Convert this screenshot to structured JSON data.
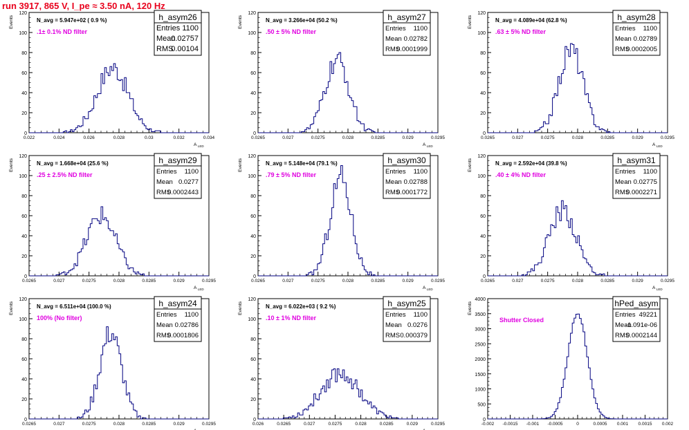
{
  "title": "run 3917,   865 V, I_pe ≈ 3.50 nA, 120 Hz",
  "chart_data": [
    {
      "type": "histogram",
      "name": "h_asym26",
      "navg": "N_avg = 5.947e+02 ( 0.9 %)",
      "filter": ".1± 0.1% ND filter",
      "stats": [
        [
          "Entries",
          "1100"
        ],
        [
          "Mean",
          "0.02757"
        ],
        [
          "RMS",
          "0.00104"
        ]
      ],
      "xmin": 0.022,
      "xmax": 0.034,
      "xticks": [
        "0.022",
        "0.024",
        "0.026",
        "0.028",
        "0.03",
        "0.032",
        "0.034"
      ],
      "ymax": 120,
      "yticks": [
        "0",
        "20",
        "40",
        "60",
        "80",
        "100",
        "120"
      ],
      "ylabel": "Events",
      "xlabel": "A_LED",
      "mean": 0.02757,
      "rms": 0.00104,
      "peak": 65
    },
    {
      "type": "histogram",
      "name": "h_asym27",
      "navg": "N_avg = 3.266e+04 (50.2 %)",
      "filter": ".50 ± 5% ND filter",
      "stats": [
        [
          "Entries",
          "1100"
        ],
        [
          "Mean",
          "0.02782"
        ],
        [
          "RMS",
          "0.0001999"
        ]
      ],
      "xmin": 0.0265,
      "xmax": 0.0295,
      "xticks": [
        "0.0265",
        "0.027",
        "0.0275",
        "0.028",
        "0.0285",
        "0.029",
        "0.0295"
      ],
      "ymax": 120,
      "yticks": [
        "0",
        "20",
        "40",
        "60",
        "80",
        "100",
        "120"
      ],
      "ylabel": "Events",
      "xlabel": "A_LED",
      "mean": 0.02782,
      "rms": 0.0001999,
      "peak": 72
    },
    {
      "type": "histogram",
      "name": "h_asym28",
      "navg": "N_avg = 4.089e+04 (62.8 %)",
      "filter": ".63 ± 5% ND filter",
      "stats": [
        [
          "Entries",
          "1100"
        ],
        [
          "Mean",
          "0.02789"
        ],
        [
          "RMS",
          "0.0002005"
        ]
      ],
      "xmin": 0.0265,
      "xmax": 0.0295,
      "xticks": [
        "0.0265",
        "0.027",
        "0.0275",
        "0.028",
        "0.0285",
        "0.029",
        "0.0295"
      ],
      "ymax": 120,
      "yticks": [
        "0",
        "20",
        "40",
        "60",
        "80",
        "100",
        "120"
      ],
      "ylabel": "Events",
      "xlabel": "A_LED",
      "mean": 0.02789,
      "rms": 0.0002005,
      "peak": 84
    },
    {
      "type": "histogram",
      "name": "h_asym29",
      "navg": "N_avg = 1.668e+04 (25.6 %)",
      "filter": ".25 ± 2.5% ND filter",
      "stats": [
        [
          "Entries",
          "1100"
        ],
        [
          "Mean",
          "0.0277"
        ],
        [
          "RMS",
          "0.0002443"
        ]
      ],
      "xmin": 0.0265,
      "xmax": 0.0295,
      "xticks": [
        "0.0265",
        "0.027",
        "0.0275",
        "0.028",
        "0.0285",
        "0.029",
        "0.0295"
      ],
      "ymax": 120,
      "yticks": [
        "0",
        "20",
        "40",
        "60",
        "80",
        "100",
        "120"
      ],
      "ylabel": "Events",
      "xlabel": "A_LED",
      "mean": 0.0277,
      "rms": 0.0002443,
      "peak": 60
    },
    {
      "type": "histogram",
      "name": "h_asym30",
      "navg": "N_avg = 5.148e+04 (79.1 %)",
      "filter": ".79 ± 5% ND filter",
      "stats": [
        [
          "Entries",
          "1100"
        ],
        [
          "Mean",
          "0.02788"
        ],
        [
          "RMS",
          "0.0001772"
        ]
      ],
      "xmin": 0.0265,
      "xmax": 0.0295,
      "xticks": [
        "0.0265",
        "0.027",
        "0.0275",
        "0.028",
        "0.0285",
        "0.029",
        "0.0295"
      ],
      "ymax": 120,
      "yticks": [
        "0",
        "20",
        "40",
        "60",
        "80",
        "100",
        "120"
      ],
      "ylabel": "Events",
      "xlabel": "A_LED",
      "mean": 0.02788,
      "rms": 0.0001772,
      "peak": 100
    },
    {
      "type": "histogram",
      "name": "h_asym31",
      "navg": "N_avg = 2.592e+04 (39.8 %)",
      "filter": ".40 ± 4% ND filter",
      "stats": [
        [
          "Entries",
          "1100"
        ],
        [
          "Mean",
          "0.02775"
        ],
        [
          "RMS",
          "0.0002271"
        ]
      ],
      "xmin": 0.0265,
      "xmax": 0.0295,
      "xticks": [
        "0.0265",
        "0.027",
        "0.0275",
        "0.028",
        "0.0285",
        "0.029",
        "0.0295"
      ],
      "ymax": 120,
      "yticks": [
        "0",
        "20",
        "40",
        "60",
        "80",
        "100",
        "120"
      ],
      "ylabel": "Events",
      "xlabel": "A_LED",
      "mean": 0.02775,
      "rms": 0.0002271,
      "peak": 66
    },
    {
      "type": "histogram",
      "name": "h_asym24",
      "navg": "N_avg = 6.511e+04 (100.0 %)",
      "filter": "100% (No filter)",
      "stats": [
        [
          "Entries",
          "1100"
        ],
        [
          "Mean",
          "0.02786"
        ],
        [
          "RMS",
          "0.0001806"
        ]
      ],
      "xmin": 0.0265,
      "xmax": 0.0295,
      "xticks": [
        "0.0265",
        "0.027",
        "0.0275",
        "0.028",
        "0.0285",
        "0.029",
        "0.0295"
      ],
      "ymax": 120,
      "yticks": [
        "0",
        "20",
        "40",
        "60",
        "80",
        "100",
        "120"
      ],
      "ylabel": "Events",
      "xlabel": "A_LED",
      "mean": 0.02786,
      "rms": 0.0001806,
      "peak": 86
    },
    {
      "type": "histogram",
      "name": "h_asym25",
      "navg": "N_avg = 6.022e+03 ( 9.2 %)",
      "filter": ".10 ± 1% ND filter",
      "stats": [
        [
          "Entries",
          "1100"
        ],
        [
          "Mean",
          "0.0276"
        ],
        [
          "RMS",
          "0.000379"
        ]
      ],
      "xmin": 0.026,
      "xmax": 0.0295,
      "xticks": [
        "0.026",
        "0.0265",
        "0.027",
        "0.0275",
        "0.028",
        "0.0285",
        "0.029",
        "0.0295"
      ],
      "ymax": 120,
      "yticks": [
        "0",
        "20",
        "40",
        "60",
        "80",
        "100",
        "120"
      ],
      "ylabel": "Events",
      "xlabel": "A_LED",
      "mean": 0.0276,
      "rms": 0.000379,
      "peak": 46
    },
    {
      "type": "histogram",
      "name": "hPed_asym",
      "navg": "",
      "filter": "Shutter Closed",
      "stats": [
        [
          "Entries",
          "49221"
        ],
        [
          "Mean",
          "-1.091e-06"
        ],
        [
          "RMS",
          "0.0002144"
        ]
      ],
      "xmin": -0.002,
      "xmax": 0.002,
      "xticks": [
        "-0.002",
        "-0.0015",
        "-0.001",
        "-0.0005",
        "0",
        "0.0005",
        "0.001",
        "0.0015",
        "0.002"
      ],
      "ymax": 4000,
      "yticks": [
        "0",
        "500",
        "1000",
        "1500",
        "2000",
        "2500",
        "3000",
        "3500",
        "4000"
      ],
      "ylabel": "Events",
      "xlabel": "",
      "mean": -1.091e-06,
      "rms": 0.0002144,
      "peak": 3520
    }
  ]
}
